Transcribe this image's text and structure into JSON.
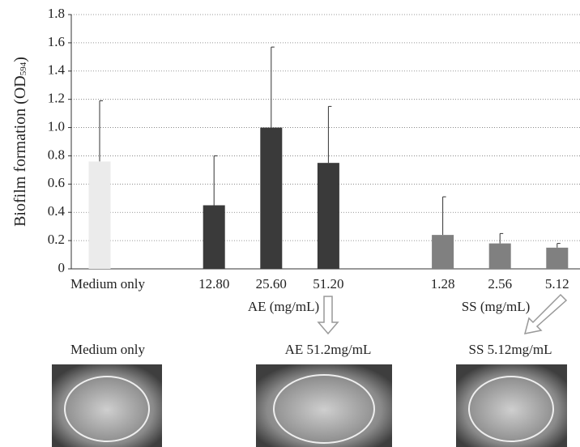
{
  "chart_data": {
    "type": "bar",
    "ylabel": [
      "Biofilm formation (OD",
      "594",
      ")"
    ],
    "categories": [
      "Medium only",
      null,
      "12.80",
      "25.60",
      "51.20",
      null,
      "1.28",
      "2.56",
      "5.12"
    ],
    "values": [
      0.76,
      null,
      0.45,
      1.0,
      0.75,
      null,
      0.24,
      0.18,
      0.15
    ],
    "errors": [
      0.43,
      null,
      0.35,
      0.57,
      0.4,
      null,
      0.27,
      0.07,
      0.03
    ],
    "colors": [
      "#ebebeb",
      null,
      "#3a3a3a",
      "#3a3a3a",
      "#3a3a3a",
      null,
      "#808080",
      "#808080",
      "#808080"
    ],
    "ylim": [
      0,
      1.8
    ],
    "yticks": [
      0,
      0.2,
      0.4,
      0.6,
      0.8,
      {
        "value": 1,
        "label": "1.0"
      },
      1.2,
      1.4,
      1.6,
      1.8
    ],
    "grid": true,
    "group_labels": [
      "AE (mg/mL)",
      "SS (mg/mL)"
    ]
  },
  "photos": {
    "captions": [
      "Medium only",
      "AE 51.2mg/mL",
      "SS 5.12mg/mL"
    ]
  }
}
